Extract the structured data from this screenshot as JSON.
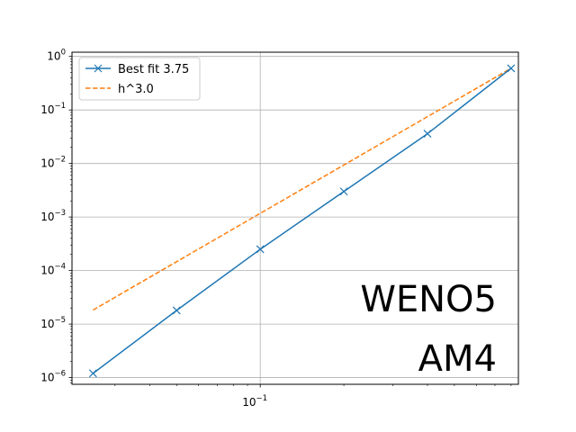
{
  "chart_data": {
    "type": "line",
    "xscale": "log",
    "yscale": "log",
    "xlim": [
      0.021,
      0.85
    ],
    "ylim": [
      7.5e-07,
      1.2
    ],
    "grid": true,
    "legend_placement": "upper-left",
    "x_ticks": [
      {
        "base": "10",
        "exp": "−1",
        "value": 0.1
      }
    ],
    "y_ticks": [
      {
        "base": "10",
        "exp": "0",
        "value": 1
      },
      {
        "base": "10",
        "exp": "−1",
        "value": 0.1
      },
      {
        "base": "10",
        "exp": "−2",
        "value": 0.01
      },
      {
        "base": "10",
        "exp": "−3",
        "value": 0.001
      },
      {
        "base": "10",
        "exp": "−4",
        "value": 0.0001
      },
      {
        "base": "10",
        "exp": "−5",
        "value": 1e-05
      },
      {
        "base": "10",
        "exp": "−6",
        "value": 1e-06
      }
    ],
    "series": [
      {
        "name": "Best fit 3.75",
        "color": "#1f77b4",
        "line_style": "solid",
        "marker": "x",
        "x": [
          0.025,
          0.05,
          0.1,
          0.2,
          0.4,
          0.8
        ],
        "y": [
          1.2e-06,
          1.8e-05,
          0.00025,
          0.003,
          0.036,
          0.6
        ]
      },
      {
        "name": "h^3.0",
        "color": "#ff7f0e",
        "line_style": "dashed",
        "marker": "none",
        "x": [
          0.025,
          0.8
        ],
        "y": [
          1.83e-05,
          0.6
        ]
      }
    ],
    "annotations": [
      "WENO5",
      "AM4"
    ]
  }
}
